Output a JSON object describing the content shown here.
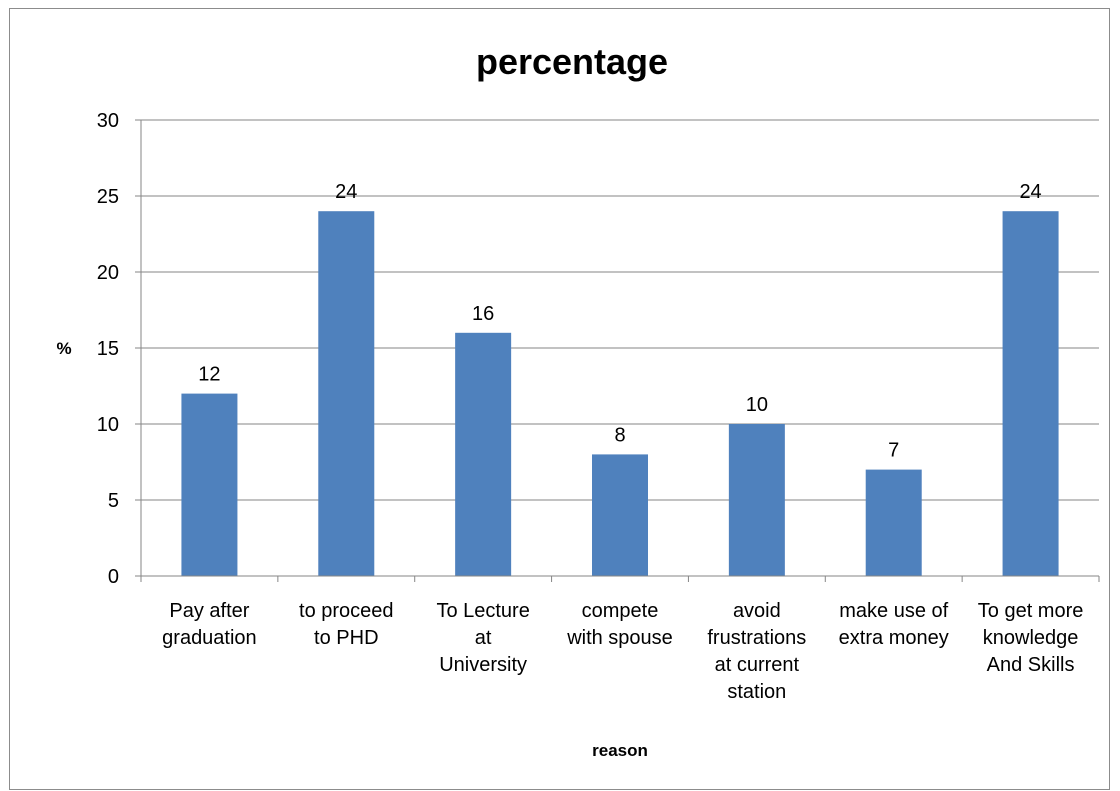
{
  "chart_data": {
    "type": "bar",
    "title": "percentage",
    "xlabel": "reason",
    "ylabel": "%",
    "ylim": [
      0,
      30
    ],
    "yticks": [
      0,
      5,
      10,
      15,
      20,
      25,
      30
    ],
    "grid": true,
    "legend": "none",
    "bar_color": "#4F81BD",
    "gridline_color": "#868686",
    "categories": [
      [
        "Pay after",
        "graduation"
      ],
      [
        "to proceed",
        "to PHD"
      ],
      [
        "To Lecture",
        "at",
        "University"
      ],
      [
        "compete",
        "with spouse"
      ],
      [
        "avoid",
        "frustrations",
        "at current",
        "station"
      ],
      [
        "make use of",
        "extra money"
      ],
      [
        "To get more",
        "knowledge",
        "And Skills"
      ]
    ],
    "values": [
      12,
      24,
      16,
      8,
      10,
      7,
      24
    ],
    "data_labels": [
      "12",
      "24",
      "16",
      "8",
      "10",
      "7",
      "24"
    ]
  }
}
